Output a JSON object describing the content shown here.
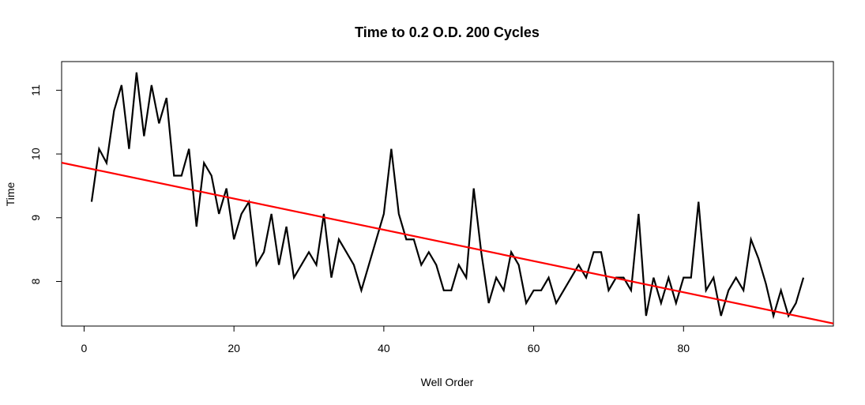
{
  "chart_data": {
    "type": "line",
    "title": "Time to 0.2 O.D. 200 Cycles",
    "xlabel": "Well Order",
    "ylabel": "Time",
    "xlim": [
      -3,
      100
    ],
    "ylim": [
      7.3,
      11.45
    ],
    "x_ticks": [
      0,
      20,
      40,
      60,
      80
    ],
    "y_ticks": [
      8,
      9,
      10,
      11
    ],
    "grid": false,
    "series": [
      {
        "color": "#000000",
        "x": [
          1,
          2,
          3,
          4,
          5,
          6,
          7,
          8,
          9,
          10,
          11,
          12,
          13,
          14,
          15,
          16,
          17,
          18,
          19,
          20,
          21,
          22,
          23,
          24,
          25,
          26,
          27,
          28,
          29,
          30,
          31,
          32,
          33,
          34,
          35,
          36,
          37,
          38,
          39,
          40,
          41,
          42,
          43,
          44,
          45,
          46,
          47,
          48,
          49,
          50,
          51,
          52,
          53,
          54,
          55,
          56,
          57,
          58,
          59,
          60,
          61,
          62,
          63,
          64,
          65,
          66,
          67,
          68,
          69,
          70,
          71,
          72,
          73,
          74,
          75,
          76,
          77,
          78,
          79,
          80,
          81,
          82,
          83,
          84,
          85,
          86,
          87,
          88,
          89,
          90,
          91,
          92,
          93,
          94,
          95,
          96
        ],
        "y": [
          9.25,
          10.08,
          9.86,
          10.68,
          11.08,
          10.08,
          11.28,
          10.28,
          11.08,
          10.48,
          10.88,
          9.66,
          9.66,
          10.08,
          8.86,
          9.86,
          9.66,
          9.06,
          9.46,
          8.66,
          9.06,
          9.25,
          8.26,
          8.46,
          9.06,
          8.26,
          8.86,
          8.06,
          8.26,
          8.46,
          8.26,
          9.06,
          8.06,
          8.66,
          8.46,
          8.26,
          7.86,
          8.26,
          8.66,
          9.06,
          10.08,
          9.06,
          8.66,
          8.66,
          8.26,
          8.46,
          8.26,
          7.86,
          7.86,
          8.26,
          8.06,
          9.46,
          8.46,
          7.66,
          8.06,
          7.86,
          8.46,
          8.26,
          7.66,
          7.86,
          7.86,
          8.06,
          7.66,
          7.86,
          8.06,
          8.26,
          8.06,
          8.46,
          8.46,
          7.86,
          8.06,
          8.06,
          7.86,
          9.06,
          7.46,
          8.06,
          7.66,
          8.06,
          7.66,
          8.06,
          8.06,
          9.25,
          7.86,
          8.06,
          7.46,
          7.86,
          8.06,
          7.86,
          8.66,
          8.36,
          7.96,
          7.46,
          7.86,
          7.46,
          7.66,
          8.06
        ]
      }
    ],
    "trend_line": {
      "color": "#ff0000",
      "intercept": 9.79,
      "slope": -0.0245
    }
  }
}
